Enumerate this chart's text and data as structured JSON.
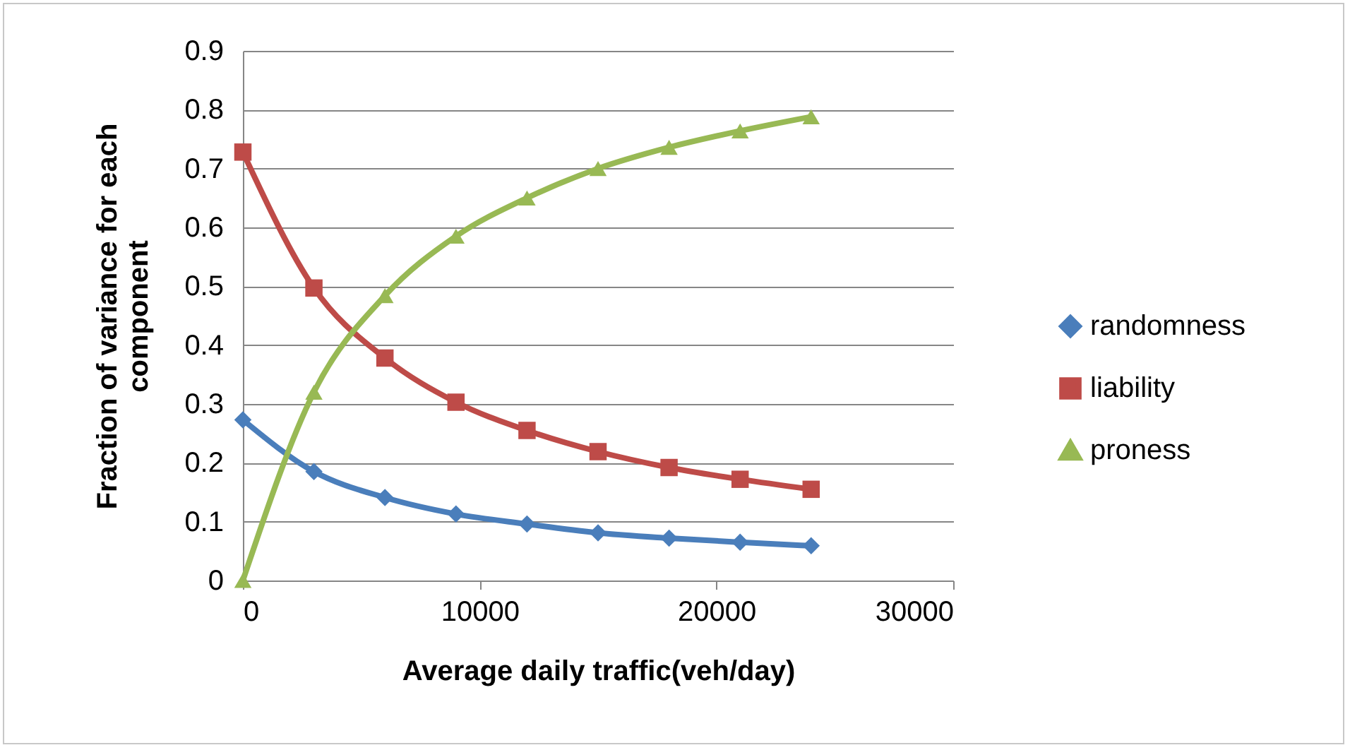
{
  "chart_data": {
    "type": "line",
    "xlabel": "Average daily traffic(veh/day)",
    "ylabel": "Fraction of variance for each component",
    "x": [
      0,
      3000,
      6000,
      9000,
      12000,
      15000,
      18000,
      21000,
      24000
    ],
    "series": [
      {
        "name": "randomness",
        "color": "#4a7ebb",
        "marker": "diamond",
        "values": [
          0.273,
          0.185,
          0.141,
          0.113,
          0.096,
          0.081,
          0.072,
          0.065,
          0.059
        ]
      },
      {
        "name": "liability",
        "color": "#be4b48",
        "marker": "square",
        "values": [
          0.728,
          0.497,
          0.378,
          0.303,
          0.255,
          0.219,
          0.192,
          0.172,
          0.155
        ]
      },
      {
        "name": "proness",
        "color": "#98b954",
        "marker": "triangle",
        "values": [
          0,
          0.32,
          0.484,
          0.585,
          0.65,
          0.7,
          0.736,
          0.764,
          0.788
        ]
      }
    ],
    "xlim": [
      0,
      30000
    ],
    "xticks": [
      0,
      10000,
      20000,
      30000
    ],
    "ylim": [
      0,
      0.9
    ],
    "yticks": [
      0,
      0.1,
      0.2,
      0.3,
      0.4,
      0.5,
      0.6,
      0.7,
      0.8,
      0.9
    ],
    "grid": "y",
    "legend": "right",
    "line_style": "solid"
  }
}
